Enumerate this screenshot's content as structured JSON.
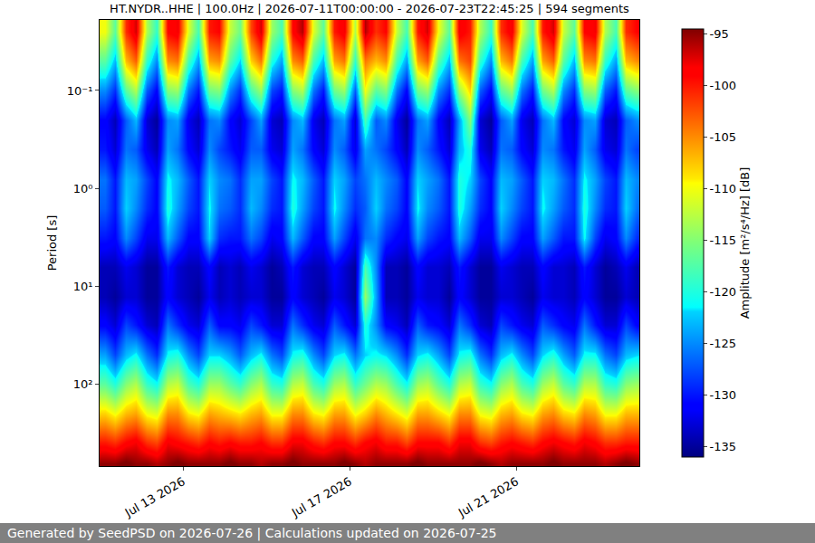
{
  "chart_data": {
    "type": "heatmap",
    "title": "HT.NYDR..HHE | 100.0Hz | 2026-07-11T00:00:00 - 2026-07-23T22:45:25 | 594 segments",
    "ylabel": "Period [s]",
    "footer": "Generated by SeedPSD on 2026-07-26 | Calculations updated on 2026-07-25",
    "log": "y",
    "grid": true,
    "xlim": [
      "2026-07-11T00:00:00",
      "2026-07-23T22:45:25"
    ],
    "ylim": [
      0.019,
      690
    ],
    "xticks": [
      {
        "value": "2026-07-13T00:00:00",
        "label": "Jul 13 2026"
      },
      {
        "value": "2026-07-17T00:00:00",
        "label": "Jul 17 2026"
      },
      {
        "value": "2026-07-21T00:00:00",
        "label": "Jul 21 2026"
      }
    ],
    "yticks": [
      {
        "value": 0.1,
        "label": "10⁻¹"
      },
      {
        "value": 1,
        "label": "10⁰"
      },
      {
        "value": 10,
        "label": "10¹"
      },
      {
        "value": 100,
        "label": "10²"
      }
    ],
    "colorbar": {
      "title": "Amplitude [m²/s⁴/Hz] [dB]",
      "range": [
        -136,
        -94.5
      ],
      "ticks": [
        -95,
        -100,
        -105,
        -110,
        -115,
        -120,
        -125,
        -130,
        -135
      ]
    },
    "x": [
      "2026-07-11T03:00:00",
      "2026-07-11T09:00:00",
      "2026-07-11T15:00:00",
      "2026-07-11T21:00:00",
      "2026-07-12T03:00:00",
      "2026-07-12T09:00:00",
      "2026-07-12T15:00:00",
      "2026-07-12T21:00:00",
      "2026-07-13T03:00:00",
      "2026-07-13T09:00:00",
      "2026-07-13T15:00:00",
      "2026-07-13T21:00:00",
      "2026-07-14T03:00:00",
      "2026-07-14T09:00:00",
      "2026-07-14T15:00:00",
      "2026-07-14T21:00:00",
      "2026-07-15T03:00:00",
      "2026-07-15T09:00:00",
      "2026-07-15T15:00:00",
      "2026-07-15T21:00:00",
      "2026-07-16T03:00:00",
      "2026-07-16T09:00:00",
      "2026-07-16T15:00:00",
      "2026-07-16T21:00:00",
      "2026-07-17T03:00:00",
      "2026-07-17T09:00:00",
      "2026-07-17T15:00:00",
      "2026-07-17T21:00:00",
      "2026-07-18T03:00:00",
      "2026-07-18T09:00:00",
      "2026-07-18T15:00:00",
      "2026-07-18T21:00:00",
      "2026-07-19T03:00:00",
      "2026-07-19T09:00:00",
      "2026-07-19T15:00:00",
      "2026-07-19T21:00:00",
      "2026-07-20T03:00:00",
      "2026-07-20T09:00:00",
      "2026-07-20T15:00:00",
      "2026-07-20T21:00:00",
      "2026-07-21T03:00:00",
      "2026-07-21T09:00:00",
      "2026-07-21T15:00:00",
      "2026-07-21T21:00:00",
      "2026-07-22T03:00:00",
      "2026-07-22T09:00:00",
      "2026-07-22T15:00:00",
      "2026-07-22T21:00:00",
      "2026-07-23T03:00:00",
      "2026-07-23T09:00:00",
      "2026-07-23T15:00:00",
      "2026-07-23T21:00:00"
    ],
    "y": [
      0.025,
      0.05,
      0.1,
      0.2,
      0.4,
      0.8,
      1.6,
      3.2,
      6.4,
      12.8,
      25,
      50,
      100,
      200,
      400,
      650
    ],
    "z": [
      [
        -110,
        -117,
        -101,
        -97,
        -113,
        -119,
        -99,
        -98,
        -111,
        -118,
        -100,
        -99,
        -112,
        -116,
        -102,
        -97,
        -114,
        -118,
        -99,
        -96,
        -111,
        -117,
        -100,
        -98,
        -113,
        -96,
        -101,
        -99,
        -112,
        -118,
        -100,
        -97,
        -110,
        -117,
        -98,
        -100,
        -113,
        -119,
        -101,
        -98,
        -111,
        -118,
        -100,
        -97,
        -112,
        -117,
        -99,
        -98,
        -113,
        -118,
        -101,
        -99
      ],
      [
        -117,
        -123,
        -107,
        -103,
        -119,
        -125,
        -105,
        -104,
        -118,
        -124,
        -106,
        -105,
        -117,
        -122,
        -108,
        -104,
        -120,
        -124,
        -105,
        -103,
        -118,
        -123,
        -106,
        -104,
        -119,
        -104,
        -107,
        -105,
        -118,
        -124,
        -106,
        -103,
        -117,
        -123,
        -104,
        -102,
        -119,
        -125,
        -107,
        -104,
        -118,
        -124,
        -106,
        -103,
        -117,
        -123,
        -105,
        -104,
        -119,
        -124,
        -107,
        -105
      ],
      [
        -125,
        -129,
        -117,
        -113,
        -127,
        -131,
        -115,
        -114,
        -126,
        -130,
        -116,
        -115,
        -125,
        -129,
        -118,
        -114,
        -128,
        -130,
        -115,
        -113,
        -126,
        -130,
        -116,
        -114,
        -127,
        -110,
        -117,
        -115,
        -126,
        -131,
        -116,
        -114,
        -125,
        -129,
        -114,
        -108,
        -127,
        -131,
        -117,
        -114,
        -126,
        -130,
        -116,
        -113,
        -125,
        -129,
        -115,
        -114,
        -127,
        -130,
        -117,
        -115
      ],
      [
        -131,
        -134,
        -127,
        -123,
        -133,
        -135,
        -125,
        -124,
        -132,
        -134,
        -126,
        -125,
        -131,
        -133,
        -128,
        -124,
        -133,
        -134,
        -125,
        -123,
        -132,
        -134,
        -126,
        -124,
        -133,
        -118,
        -127,
        -125,
        -132,
        -135,
        -126,
        -124,
        -131,
        -134,
        -124,
        -115,
        -133,
        -135,
        -127,
        -124,
        -132,
        -134,
        -126,
        -123,
        -131,
        -133,
        -125,
        -124,
        -133,
        -134,
        -127,
        -125
      ],
      [
        -130,
        -133,
        -126,
        -127,
        -132,
        -134,
        -124,
        -126,
        -131,
        -133,
        -125,
        -128,
        -130,
        -132,
        -127,
        -127,
        -132,
        -133,
        -124,
        -126,
        -131,
        -133,
        -125,
        -127,
        -132,
        -124,
        -126,
        -128,
        -131,
        -134,
        -125,
        -127,
        -130,
        -133,
        -123,
        -120,
        -132,
        -134,
        -126,
        -127,
        -131,
        -133,
        -125,
        -126,
        -130,
        -132,
        -124,
        -127,
        -132,
        -133,
        -126,
        -128
      ],
      [
        -126,
        -130,
        -123,
        -124,
        -128,
        -131,
        -121,
        -123,
        -127,
        -130,
        -122,
        -125,
        -126,
        -129,
        -124,
        -124,
        -128,
        -130,
        -121,
        -123,
        -127,
        -130,
        -122,
        -124,
        -128,
        -126,
        -123,
        -125,
        -127,
        -131,
        -122,
        -124,
        -126,
        -130,
        -120,
        -122,
        -128,
        -131,
        -123,
        -124,
        -127,
        -130,
        -122,
        -123,
        -126,
        -129,
        -121,
        -124,
        -128,
        -130,
        -123,
        -125
      ],
      [
        -127,
        -130,
        -122,
        -125,
        -129,
        -131,
        -120,
        -124,
        -128,
        -130,
        -121,
        -126,
        -127,
        -129,
        -123,
        -125,
        -129,
        -130,
        -120,
        -124,
        -128,
        -130,
        -121,
        -125,
        -129,
        -127,
        -122,
        -126,
        -128,
        -131,
        -121,
        -125,
        -127,
        -130,
        -120,
        -124,
        -129,
        -131,
        -122,
        -125,
        -128,
        -130,
        -121,
        -124,
        -127,
        -129,
        -120,
        -125,
        -129,
        -130,
        -122,
        -126
      ],
      [
        -130,
        -131,
        -125,
        -128,
        -132,
        -132,
        -123,
        -127,
        -131,
        -131,
        -122,
        -129,
        -130,
        -130,
        -126,
        -128,
        -132,
        -131,
        -123,
        -127,
        -131,
        -131,
        -124,
        -128,
        -132,
        -126,
        -125,
        -129,
        -131,
        -132,
        -124,
        -128,
        -130,
        -131,
        -123,
        -127,
        -132,
        -132,
        -125,
        -128,
        -131,
        -131,
        -124,
        -127,
        -130,
        -130,
        -121,
        -128,
        -132,
        -131,
        -125,
        -129
      ],
      [
        -134,
        -134,
        -132,
        -133,
        -135,
        -135,
        -130,
        -133,
        -134,
        -134,
        -131,
        -134,
        -133,
        -134,
        -132,
        -133,
        -135,
        -134,
        -130,
        -133,
        -134,
        -134,
        -131,
        -133,
        -135,
        -118,
        -125,
        -134,
        -134,
        -135,
        -131,
        -133,
        -133,
        -134,
        -130,
        -133,
        -135,
        -135,
        -132,
        -133,
        -134,
        -134,
        -131,
        -133,
        -133,
        -134,
        -130,
        -133,
        -135,
        -134,
        -132,
        -134
      ],
      [
        -134,
        -135,
        -133,
        -133,
        -135,
        -135,
        -131,
        -133,
        -134,
        -135,
        -132,
        -134,
        -133,
        -134,
        -133,
        -133,
        -135,
        -135,
        -131,
        -133,
        -134,
        -135,
        -132,
        -133,
        -135,
        -114,
        -124,
        -134,
        -134,
        -135,
        -132,
        -133,
        -133,
        -135,
        -131,
        -133,
        -135,
        -135,
        -133,
        -133,
        -134,
        -135,
        -132,
        -133,
        -133,
        -134,
        -131,
        -133,
        -135,
        -135,
        -133,
        -134
      ],
      [
        -131,
        -133,
        -128,
        -130,
        -133,
        -134,
        -126,
        -129,
        -132,
        -133,
        -127,
        -131,
        -131,
        -132,
        -128,
        -130,
        -133,
        -133,
        -126,
        -129,
        -132,
        -133,
        -127,
        -130,
        -133,
        -120,
        -125,
        -131,
        -132,
        -134,
        -127,
        -130,
        -131,
        -133,
        -126,
        -129,
        -133,
        -134,
        -128,
        -130,
        -132,
        -133,
        -127,
        -129,
        -131,
        -132,
        -126,
        -130,
        -133,
        -133,
        -128,
        -131
      ],
      [
        -124,
        -128,
        -123,
        -121,
        -126,
        -129,
        -121,
        -120,
        -125,
        -128,
        -122,
        -122,
        -124,
        -127,
        -123,
        -121,
        -126,
        -128,
        -121,
        -120,
        -125,
        -128,
        -122,
        -121,
        -126,
        -122,
        -121,
        -122,
        -125,
        -129,
        -122,
        -121,
        -124,
        -128,
        -121,
        -120,
        -126,
        -129,
        -123,
        -121,
        -125,
        -128,
        -122,
        -120,
        -124,
        -127,
        -121,
        -121,
        -126,
        -128,
        -123,
        -122
      ],
      [
        -117,
        -120,
        -115,
        -113,
        -119,
        -121,
        -113,
        -112,
        -118,
        -120,
        -114,
        -114,
        -117,
        -119,
        -115,
        -113,
        -119,
        -120,
        -113,
        -112,
        -118,
        -120,
        -114,
        -113,
        -119,
        -116,
        -113,
        -114,
        -118,
        -121,
        -114,
        -113,
        -117,
        -120,
        -113,
        -112,
        -119,
        -121,
        -115,
        -113,
        -118,
        -120,
        -114,
        -112,
        -117,
        -119,
        -113,
        -113,
        -119,
        -120,
        -115,
        -114
      ],
      [
        -108,
        -110,
        -107,
        -106,
        -110,
        -111,
        -105,
        -105,
        -109,
        -110,
        -106,
        -107,
        -108,
        -109,
        -107,
        -106,
        -110,
        -110,
        -105,
        -105,
        -109,
        -110,
        -106,
        -106,
        -110,
        -108,
        -105,
        -107,
        -109,
        -111,
        -106,
        -106,
        -108,
        -110,
        -105,
        -105,
        -110,
        -111,
        -107,
        -106,
        -109,
        -110,
        -106,
        -105,
        -108,
        -109,
        -105,
        -106,
        -110,
        -110,
        -107,
        -107
      ],
      [
        -100,
        -101,
        -99,
        -98,
        -101,
        -102,
        -98,
        -99,
        -100,
        -101,
        -99,
        -100,
        -99,
        -100,
        -100,
        -99,
        -101,
        -101,
        -98,
        -98,
        -100,
        -101,
        -99,
        -99,
        -101,
        -99,
        -98,
        -100,
        -100,
        -102,
        -99,
        -99,
        -99,
        -101,
        -98,
        -98,
        -101,
        -102,
        -100,
        -99,
        -100,
        -101,
        -99,
        -98,
        -99,
        -100,
        -98,
        -99,
        -101,
        -101,
        -100,
        -100
      ],
      [
        -95,
        -95,
        -94,
        -95,
        -95,
        -96,
        -95,
        -94,
        -95,
        -95,
        -95,
        -95,
        -94,
        -95,
        -95,
        -96,
        -95,
        -95,
        -94,
        -95,
        -95,
        -95,
        -95,
        -94,
        -95,
        -96,
        -95,
        -95,
        -95,
        -95,
        -94,
        -95,
        -95,
        -95,
        -95,
        -95,
        -94,
        -95,
        -96,
        -95,
        -95,
        -95,
        -95,
        -94,
        -95,
        -95,
        -95,
        -95,
        -96,
        -95,
        -94,
        -95
      ]
    ]
  }
}
